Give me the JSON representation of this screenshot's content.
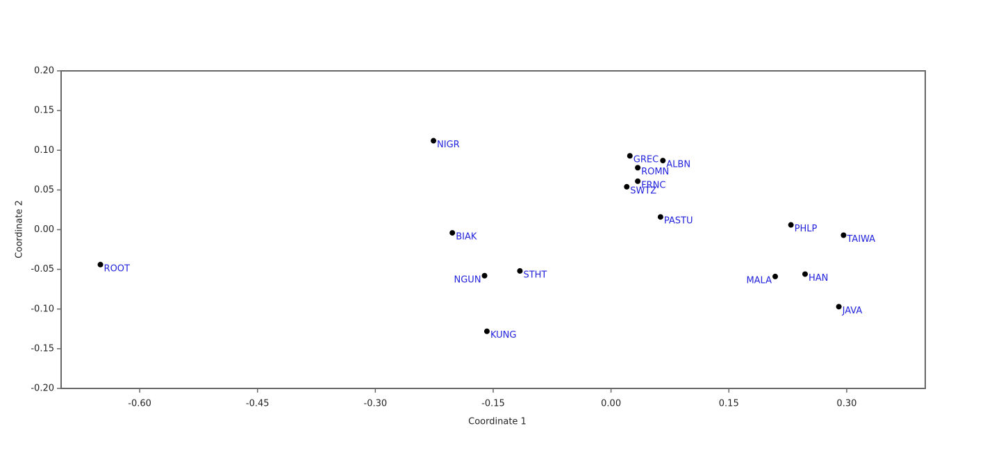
{
  "chart_data": {
    "type": "scatter",
    "xlabel": "Coordinate 1",
    "ylabel": "Coordinate 2",
    "color": "#000000",
    "label_color": "#2222dd",
    "labels": [
      "ROOT",
      "NIGR",
      "BIAK",
      "NGUN",
      "STHT",
      "KUNG",
      "GREC",
      "ALBN",
      "ROMN",
      "FRNC",
      "SWTZ",
      "PASTU",
      "PHLP",
      "TAIWA",
      "MALA",
      "HAN",
      "JAVA"
    ],
    "x": [
      -0.65,
      -0.226,
      -0.202,
      -0.161,
      -0.116,
      -0.158,
      0.024,
      0.066,
      0.034,
      0.034,
      0.02,
      0.063,
      0.229,
      0.296,
      0.209,
      0.247,
      0.29
    ],
    "y": [
      -0.044,
      0.112,
      -0.004,
      -0.058,
      -0.052,
      -0.128,
      0.093,
      0.087,
      0.078,
      0.061,
      0.054,
      0.016,
      0.006,
      -0.007,
      -0.059,
      -0.056,
      -0.097
    ],
    "xlim": [
      -0.7,
      0.4
    ],
    "ylim": [
      -0.2,
      0.2
    ],
    "xticks": [
      {
        "value": -0.6,
        "label": "-0.60"
      },
      {
        "value": -0.45,
        "label": "-0.45"
      },
      {
        "value": -0.3,
        "label": "-0.30"
      },
      {
        "value": -0.15,
        "label": "-0.15"
      },
      {
        "value": 0,
        "label": "0.00"
      },
      {
        "value": 0.15,
        "label": "0.15"
      },
      {
        "value": 0.3,
        "label": "0.30"
      }
    ],
    "yticks": [
      {
        "value": -0.2,
        "label": "-0.20"
      },
      {
        "value": -0.15,
        "label": "-0.15"
      },
      {
        "value": -0.1,
        "label": "-0.10"
      },
      {
        "value": -0.05,
        "label": "-0.05"
      },
      {
        "value": 0,
        "label": "0.00"
      },
      {
        "value": 0.05,
        "label": "0.05"
      },
      {
        "value": 0.1,
        "label": "0.10"
      },
      {
        "value": 0.15,
        "label": "0.15"
      },
      {
        "value": 0.2,
        "label": "0.20"
      }
    ]
  }
}
